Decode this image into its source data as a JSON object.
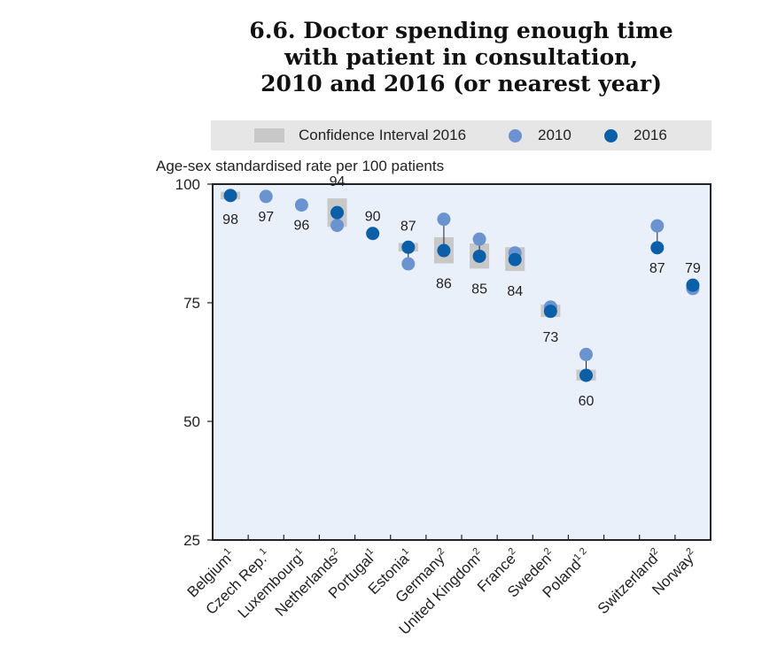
{
  "title": {
    "line1": "6.6.  Doctor spending enough time",
    "line2": "with patient in consultation,",
    "line3": "2010 and 2016 (or nearest year)"
  },
  "legend": {
    "ci_label": "Confidence Interval 2016",
    "s2010_label": "2010",
    "s2016_label": "2016"
  },
  "chart_data": {
    "type": "scatter",
    "ylabel": "Age-sex standardised rate per 100 patients",
    "ylim": [
      25,
      100
    ],
    "yticks": [
      "100",
      "75",
      "50",
      "25"
    ],
    "grid": false,
    "legend_position": "top",
    "colors": {
      "s2010": "#6b93cf",
      "s2016": "#0b5ea8",
      "ci": "#c8c8c8",
      "plot_bg": "#eaf0fa"
    },
    "categories": [
      {
        "label": "Belgium",
        "sup": "1",
        "v2010": null,
        "v2016": 97.6,
        "ci": [
          96.8,
          98.4
        ],
        "data_label": "98",
        "label_pos": "below"
      },
      {
        "label": "Czech Rep.",
        "sup": "1",
        "v2010": 97.4,
        "v2016": null,
        "ci": null,
        "data_label": "97",
        "label_pos": "below"
      },
      {
        "label": "Luxembourg",
        "sup": "1",
        "v2010": 95.6,
        "v2016": null,
        "ci": null,
        "data_label": "96",
        "label_pos": "below"
      },
      {
        "label": "Netherlands",
        "sup": "2",
        "v2010": 91.3,
        "v2016": 94.0,
        "ci": [
          91.0,
          97.0
        ],
        "data_label": "94",
        "label_pos": "above"
      },
      {
        "label": "Portugal",
        "sup": "1",
        "v2010": null,
        "v2016": 89.6,
        "ci": null,
        "data_label": "90",
        "label_pos": "above"
      },
      {
        "label": "Estonia",
        "sup": "1",
        "v2010": 83.2,
        "v2016": 86.7,
        "ci": [
          85.8,
          87.6
        ],
        "data_label": "87",
        "label_pos": "above"
      },
      {
        "label": "Germany",
        "sup": "2",
        "v2010": 92.6,
        "v2016": 86.0,
        "ci": [
          83.3,
          88.8
        ],
        "data_label": "86",
        "label_pos": "below"
      },
      {
        "label": "United Kingdom",
        "sup": "2",
        "v2010": 88.4,
        "v2016": 84.8,
        "ci": [
          82.2,
          87.5
        ],
        "data_label": "85",
        "label_pos": "below"
      },
      {
        "label": "France",
        "sup": "2",
        "v2010": 85.5,
        "v2016": 84.1,
        "ci": [
          81.7,
          86.7
        ],
        "data_label": "84",
        "label_pos": "below"
      },
      {
        "label": "Sweden",
        "sup": "2",
        "v2010": 74.1,
        "v2016": 73.2,
        "ci": [
          72.0,
          74.6
        ],
        "data_label": "73",
        "label_pos": "below"
      },
      {
        "label": "Poland",
        "sup": "1 2",
        "v2010": 64.1,
        "v2016": 59.7,
        "ci": [
          58.6,
          60.9
        ],
        "data_label": "60",
        "label_pos": "below"
      },
      {
        "label": "",
        "sup": "",
        "v2010": null,
        "v2016": null,
        "ci": null,
        "data_label": "",
        "label_pos": "below"
      },
      {
        "label": "Switzerland",
        "sup": "2",
        "v2010": 91.2,
        "v2016": 86.6,
        "ci": null,
        "data_label": "87",
        "label_pos": "below"
      },
      {
        "label": "Norway",
        "sup": "2",
        "v2010": 78.0,
        "v2016": 78.7,
        "ci": null,
        "data_label": "79",
        "label_pos": "above"
      }
    ]
  }
}
